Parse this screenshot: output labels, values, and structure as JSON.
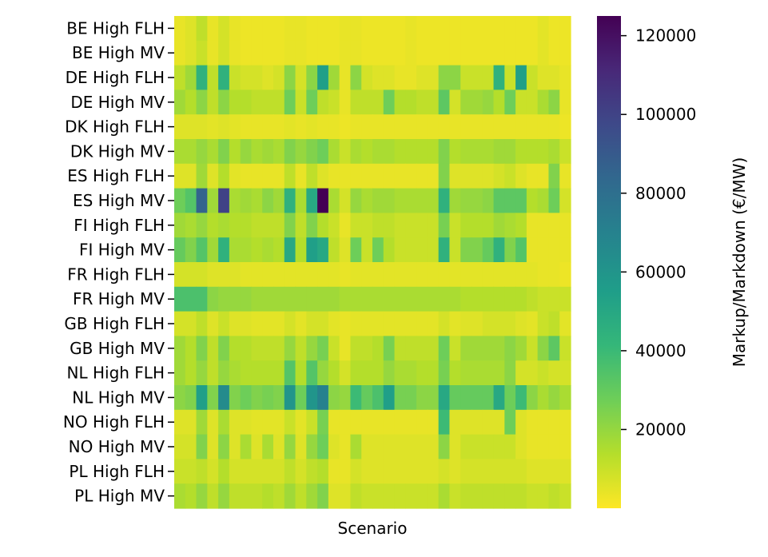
{
  "chart_data": {
    "type": "heatmap",
    "title": "",
    "xlabel": "Scenario",
    "ylabel": "",
    "colorbar": {
      "label": "Markup/Markdown (€/MW)",
      "range": [
        0,
        125000
      ],
      "ticks": [
        20000,
        40000,
        60000,
        80000,
        100000,
        120000
      ],
      "tick_labels": [
        "20000",
        "40000",
        "60000",
        "80000",
        "100000",
        "120000"
      ],
      "colormap": "viridis"
    },
    "rows": [
      "BE High FLH",
      "BE High MV",
      "DE High FLH",
      "DE High MV",
      "DK High FLH",
      "DK High MV",
      "ES High FLH",
      "ES High MV",
      "FI High FLH",
      "FI High MV",
      "FR High FLH",
      "FR High MV",
      "GB High FLH",
      "GB High MV",
      "NL High FLH",
      "NL High MV",
      "NO High FLH",
      "NO High MV",
      "PL High FLH",
      "PL High MV"
    ],
    "num_columns": 36,
    "values": [
      [
        4000,
        6000,
        12000,
        4000,
        8000,
        4000,
        3000,
        3000,
        3000,
        3000,
        4000,
        4000,
        3000,
        3000,
        3000,
        4000,
        4000,
        3000,
        3000,
        3000,
        3000,
        4000,
        3000,
        3000,
        3000,
        3000,
        3000,
        3000,
        3000,
        3000,
        3000,
        3000,
        3000,
        5000,
        3000,
        3000
      ],
      [
        4000,
        6000,
        10000,
        4000,
        8000,
        4000,
        3000,
        3000,
        3000,
        3000,
        4000,
        4000,
        3000,
        3000,
        3000,
        4000,
        4000,
        3000,
        3000,
        3000,
        3000,
        4000,
        3000,
        3000,
        3000,
        3000,
        3000,
        3000,
        3000,
        3000,
        3000,
        3000,
        3000,
        5000,
        3000,
        3000
      ],
      [
        12000,
        18000,
        45000,
        12000,
        45000,
        10000,
        8000,
        8000,
        6000,
        8000,
        22000,
        8000,
        22000,
        55000,
        18000,
        4000,
        22000,
        8000,
        6000,
        6000,
        4000,
        4000,
        6000,
        6000,
        22000,
        22000,
        10000,
        10000,
        10000,
        45000,
        10000,
        55000,
        10000,
        6000,
        6000,
        4000
      ],
      [
        18000,
        14000,
        22000,
        12000,
        22000,
        14000,
        14000,
        12000,
        12000,
        12000,
        28000,
        10000,
        28000,
        12000,
        10000,
        4000,
        12000,
        12000,
        12000,
        28000,
        14000,
        14000,
        12000,
        12000,
        32000,
        8000,
        18000,
        18000,
        20000,
        14000,
        28000,
        10000,
        10000,
        16000,
        22000,
        4000
      ],
      [
        6000,
        6000,
        6000,
        5000,
        6000,
        5000,
        4000,
        4000,
        4000,
        4000,
        5000,
        4000,
        5000,
        4000,
        4000,
        3000,
        4000,
        4000,
        4000,
        4000,
        4000,
        4000,
        4000,
        4000,
        4000,
        4000,
        4000,
        4000,
        4000,
        4000,
        4000,
        4000,
        4000,
        4000,
        4000,
        3000
      ],
      [
        16000,
        16000,
        20000,
        16000,
        24000,
        14000,
        20000,
        16000,
        18000,
        16000,
        24000,
        20000,
        24000,
        28000,
        16000,
        10000,
        16000,
        14000,
        16000,
        16000,
        14000,
        14000,
        14000,
        14000,
        24000,
        14000,
        16000,
        16000,
        16000,
        18000,
        18000,
        14000,
        14000,
        14000,
        16000,
        10000
      ],
      [
        6000,
        6000,
        18000,
        6000,
        14000,
        5000,
        4000,
        4000,
        4000,
        4000,
        12000,
        4000,
        12000,
        6000,
        4000,
        4000,
        4000,
        4000,
        4000,
        4000,
        4000,
        4000,
        4000,
        4000,
        24000,
        6000,
        6000,
        6000,
        6000,
        8000,
        10000,
        6000,
        4000,
        4000,
        24000,
        4000
      ],
      [
        28000,
        34000,
        85000,
        18000,
        100000,
        16000,
        18000,
        16000,
        22000,
        18000,
        45000,
        16000,
        50000,
        125000,
        16000,
        8000,
        20000,
        16000,
        18000,
        18000,
        16000,
        16000,
        16000,
        16000,
        45000,
        18000,
        20000,
        20000,
        22000,
        32000,
        32000,
        32000,
        14000,
        16000,
        28000,
        8000
      ],
      [
        18000,
        16000,
        20000,
        14000,
        16000,
        14000,
        14000,
        12000,
        12000,
        12000,
        24000,
        12000,
        24000,
        14000,
        10000,
        4000,
        10000,
        10000,
        12000,
        12000,
        10000,
        10000,
        10000,
        10000,
        26000,
        10000,
        14000,
        14000,
        14000,
        18000,
        16000,
        14000,
        4000,
        4000,
        4000,
        4000
      ],
      [
        30000,
        24000,
        34000,
        18000,
        45000,
        16000,
        16000,
        14000,
        16000,
        14000,
        50000,
        14000,
        55000,
        50000,
        12000,
        6000,
        28000,
        10000,
        28000,
        14000,
        10000,
        10000,
        10000,
        10000,
        45000,
        10000,
        24000,
        24000,
        30000,
        45000,
        24000,
        34000,
        4000,
        4000,
        4000,
        4000
      ],
      [
        8000,
        8000,
        8000,
        6000,
        6000,
        6000,
        5000,
        5000,
        5000,
        5000,
        5000,
        5000,
        5000,
        5000,
        5000,
        4000,
        5000,
        5000,
        5000,
        5000,
        5000,
        5000,
        5000,
        5000,
        5000,
        5000,
        5000,
        5000,
        5000,
        5000,
        5000,
        5000,
        5000,
        4000,
        4000,
        3000
      ],
      [
        36000,
        36000,
        36000,
        22000,
        20000,
        20000,
        20000,
        18000,
        18000,
        18000,
        18000,
        18000,
        18000,
        18000,
        18000,
        16000,
        16000,
        16000,
        16000,
        16000,
        16000,
        16000,
        16000,
        16000,
        16000,
        16000,
        14000,
        14000,
        14000,
        14000,
        14000,
        14000,
        12000,
        10000,
        10000,
        10000
      ],
      [
        8000,
        8000,
        12000,
        6000,
        10000,
        6000,
        6000,
        5000,
        5000,
        5000,
        8000,
        5000,
        8000,
        8000,
        5000,
        4000,
        5000,
        5000,
        5000,
        5000,
        5000,
        5000,
        5000,
        5000,
        8000,
        5000,
        6000,
        6000,
        8000,
        8000,
        8000,
        6000,
        5000,
        10000,
        12000,
        5000
      ],
      [
        18000,
        14000,
        24000,
        12000,
        24000,
        14000,
        14000,
        12000,
        12000,
        12000,
        20000,
        12000,
        20000,
        26000,
        10000,
        4000,
        12000,
        12000,
        14000,
        26000,
        12000,
        12000,
        12000,
        12000,
        28000,
        10000,
        18000,
        18000,
        18000,
        18000,
        22000,
        18000,
        10000,
        22000,
        32000,
        10000
      ],
      [
        18000,
        14000,
        20000,
        12000,
        20000,
        16000,
        14000,
        14000,
        14000,
        14000,
        34000,
        14000,
        34000,
        20000,
        14000,
        8000,
        14000,
        14000,
        14000,
        20000,
        16000,
        16000,
        14000,
        14000,
        26000,
        14000,
        16000,
        16000,
        16000,
        16000,
        22000,
        8000,
        8000,
        10000,
        8000,
        8000
      ],
      [
        22000,
        24000,
        55000,
        24000,
        65000,
        24000,
        28000,
        24000,
        26000,
        24000,
        60000,
        28000,
        60000,
        70000,
        22000,
        20000,
        40000,
        30000,
        36000,
        55000,
        26000,
        26000,
        22000,
        22000,
        50000,
        30000,
        30000,
        30000,
        30000,
        50000,
        28000,
        40000,
        22000,
        16000,
        20000,
        16000
      ],
      [
        6000,
        6000,
        18000,
        6000,
        16000,
        6000,
        6000,
        5000,
        5000,
        5000,
        10000,
        5000,
        10000,
        26000,
        4000,
        4000,
        4000,
        4000,
        4000,
        4000,
        4000,
        4000,
        4000,
        4000,
        40000,
        6000,
        6000,
        6000,
        6000,
        6000,
        28000,
        6000,
        4000,
        4000,
        4000,
        4000
      ],
      [
        8000,
        8000,
        24000,
        6000,
        22000,
        6000,
        16000,
        6000,
        16000,
        6000,
        20000,
        6000,
        20000,
        28000,
        6000,
        4000,
        16000,
        6000,
        6000,
        6000,
        6000,
        6000,
        6000,
        6000,
        22000,
        6000,
        10000,
        10000,
        10000,
        10000,
        10000,
        6000,
        4000,
        4000,
        4000,
        4000
      ],
      [
        10000,
        10000,
        12000,
        8000,
        14000,
        8000,
        8000,
        8000,
        8000,
        8000,
        12000,
        8000,
        12000,
        14000,
        4000,
        4000,
        8000,
        6000,
        6000,
        6000,
        6000,
        6000,
        6000,
        6000,
        8000,
        6000,
        8000,
        8000,
        8000,
        8000,
        8000,
        8000,
        6000,
        6000,
        6000,
        6000
      ],
      [
        16000,
        14000,
        20000,
        12000,
        20000,
        12000,
        12000,
        12000,
        14000,
        12000,
        18000,
        12000,
        18000,
        24000,
        6000,
        6000,
        12000,
        10000,
        10000,
        10000,
        10000,
        10000,
        10000,
        10000,
        16000,
        10000,
        12000,
        12000,
        12000,
        12000,
        12000,
        12000,
        10000,
        10000,
        12000,
        10000
      ]
    ]
  }
}
